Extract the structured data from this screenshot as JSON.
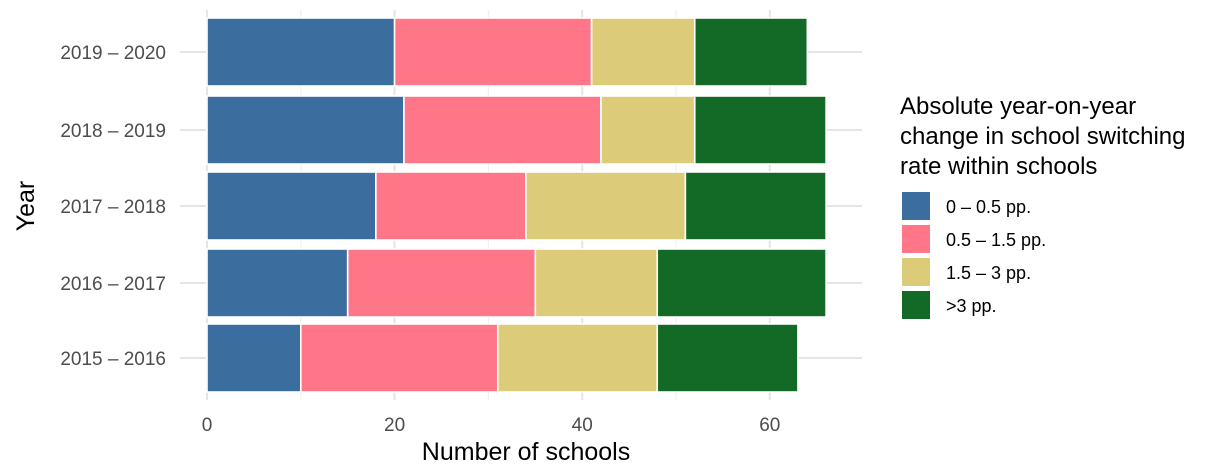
{
  "chart_data": {
    "type": "bar",
    "orientation": "horizontal",
    "stacked": true,
    "categories": [
      "2019 – 2020",
      "2018 – 2019",
      "2017 – 2018",
      "2016 – 2017",
      "2015 – 2016"
    ],
    "series": [
      {
        "name": "0 – 0.5 pp.",
        "color": "#3b6e9f",
        "values": [
          20,
          21,
          18,
          15,
          10
        ]
      },
      {
        "name": "0.5 – 1.5 pp.",
        "color": "#ff7688",
        "values": [
          21,
          21,
          16,
          20,
          21
        ]
      },
      {
        "name": "1.5 – 3 pp.",
        "color": "#dccc79",
        "values": [
          11,
          10,
          17,
          13,
          17
        ]
      },
      {
        "name": ">3 pp.",
        "color": "#136a27",
        "values": [
          12,
          14,
          15,
          18,
          15
        ]
      }
    ],
    "xlabel": "Number of schools",
    "ylabel": "Year",
    "xlim": [
      0,
      69
    ],
    "xticks": [
      0,
      20,
      40,
      60
    ],
    "grid": true,
    "legend": {
      "title_lines": [
        "Absolute year-on-year",
        "change in school switching",
        "rate within schools"
      ],
      "position": "right"
    }
  }
}
